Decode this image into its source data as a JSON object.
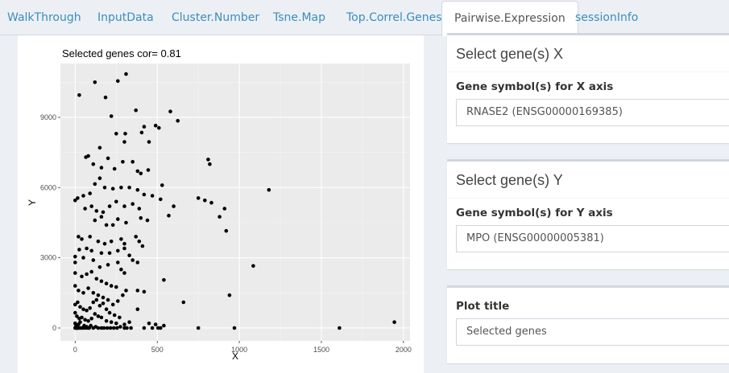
{
  "tabs": [
    {
      "label": "WalkThrough",
      "active": false
    },
    {
      "label": "InputData",
      "active": false
    },
    {
      "label": "Cluster.Number",
      "active": false
    },
    {
      "label": "Tsne.Map",
      "active": false
    },
    {
      "label": "Top.Correl.Genes",
      "active": false
    },
    {
      "label": "Pairwise.Expression",
      "active": true
    },
    {
      "label": "sessionInfo",
      "active": false
    }
  ],
  "colors": {
    "tab_link": "#3c8dbc",
    "panel_bg": "#ecf0f5",
    "plot_bg": "#ebebeb",
    "point": "#000000"
  },
  "gene_x": {
    "title": "Select gene(s) X",
    "label": "Gene symbol(s) for X axis",
    "value": "RNASE2 (ENSG00000169385)"
  },
  "gene_y": {
    "title": "Select gene(s) Y",
    "label": "Gene symbol(s) for Y axis",
    "value": "MPO (ENSG00000005381)"
  },
  "plot_title_input": {
    "label": "Plot title",
    "value": "Selected genes"
  },
  "chart_data": {
    "type": "scatter",
    "title": "Selected genes cor= 0.81",
    "xlabel": "X",
    "ylabel": "Y",
    "xlim": [
      -90,
      2040
    ],
    "ylim": [
      -550,
      11300
    ],
    "x_ticks": [
      0,
      500,
      1000,
      1500,
      2000
    ],
    "y_ticks": [
      0,
      3000,
      6000,
      9000
    ],
    "x_tick_labels": [
      "0",
      "500",
      "1000",
      "1500",
      "2000"
    ],
    "y_tick_labels": [
      "0",
      "3000",
      "6000",
      "9000"
    ],
    "grid": true,
    "points": [
      [
        25,
        9950
      ],
      [
        120,
        10500
      ],
      [
        185,
        9850
      ],
      [
        260,
        10550
      ],
      [
        310,
        10850
      ],
      [
        220,
        9050
      ],
      [
        370,
        9300
      ],
      [
        420,
        8600
      ],
      [
        490,
        8650
      ],
      [
        510,
        8550
      ],
      [
        580,
        9250
      ],
      [
        625,
        8850
      ],
      [
        405,
        8350
      ],
      [
        450,
        7950
      ],
      [
        300,
        7950
      ],
      [
        305,
        8300
      ],
      [
        250,
        8300
      ],
      [
        150,
        7700
      ],
      [
        65,
        7300
      ],
      [
        80,
        7350
      ],
      [
        110,
        7000
      ],
      [
        160,
        6850
      ],
      [
        200,
        7250
      ],
      [
        240,
        6800
      ],
      [
        290,
        7100
      ],
      [
        350,
        7100
      ],
      [
        380,
        6700
      ],
      [
        400,
        6600
      ],
      [
        445,
        6750
      ],
      [
        530,
        6100
      ],
      [
        150,
        6400
      ],
      [
        120,
        6150
      ],
      [
        180,
        6000
      ],
      [
        230,
        5950
      ],
      [
        280,
        6000
      ],
      [
        330,
        6000
      ],
      [
        380,
        5900
      ],
      [
        420,
        5700
      ],
      [
        470,
        5650
      ],
      [
        520,
        5500
      ],
      [
        750,
        5550
      ],
      [
        790,
        5450
      ],
      [
        830,
        5350
      ],
      [
        810,
        7200
      ],
      [
        820,
        7000
      ],
      [
        1180,
        5900
      ],
      [
        910,
        5100
      ],
      [
        880,
        4750
      ],
      [
        570,
        4800
      ],
      [
        600,
        5200
      ],
      [
        0,
        5450
      ],
      [
        15,
        5550
      ],
      [
        50,
        5650
      ],
      [
        90,
        5750
      ],
      [
        100,
        5200
      ],
      [
        60,
        5100
      ],
      [
        130,
        5000
      ],
      [
        170,
        4950
      ],
      [
        210,
        5200
      ],
      [
        250,
        5400
      ],
      [
        300,
        5200
      ],
      [
        350,
        5300
      ],
      [
        390,
        5100
      ],
      [
        400,
        4700
      ],
      [
        440,
        4600
      ],
      [
        160,
        4750
      ],
      [
        120,
        4600
      ],
      [
        190,
        4400
      ],
      [
        230,
        4400
      ],
      [
        260,
        4650
      ],
      [
        310,
        4500
      ],
      [
        20,
        3900
      ],
      [
        40,
        3800
      ],
      [
        90,
        3900
      ],
      [
        140,
        3700
      ],
      [
        180,
        3600
      ],
      [
        220,
        3700
      ],
      [
        280,
        3800
      ],
      [
        300,
        3600
      ],
      [
        370,
        3900
      ],
      [
        390,
        3700
      ],
      [
        410,
        3500
      ],
      [
        920,
        4150
      ],
      [
        25,
        3350
      ],
      [
        70,
        3400
      ],
      [
        100,
        3300
      ],
      [
        160,
        3200
      ],
      [
        210,
        3200
      ],
      [
        260,
        3300
      ],
      [
        300,
        3400
      ],
      [
        330,
        3100
      ],
      [
        350,
        2900
      ],
      [
        380,
        2800
      ],
      [
        0,
        3050
      ],
      [
        0,
        2800
      ],
      [
        50,
        3000
      ],
      [
        110,
        2900
      ],
      [
        150,
        2600
      ],
      [
        200,
        2700
      ],
      [
        260,
        2800
      ],
      [
        280,
        2500
      ],
      [
        300,
        2350
      ],
      [
        0,
        2350
      ],
      [
        40,
        2200
      ],
      [
        70,
        2300
      ],
      [
        100,
        2400
      ],
      [
        130,
        2100
      ],
      [
        160,
        2000
      ],
      [
        190,
        1900
      ],
      [
        220,
        1800
      ],
      [
        250,
        1750
      ],
      [
        540,
        2050
      ],
      [
        1085,
        2650
      ],
      [
        940,
        1400
      ],
      [
        0,
        1800
      ],
      [
        20,
        1600
      ],
      [
        50,
        1500
      ],
      [
        80,
        1700
      ],
      [
        110,
        1500
      ],
      [
        140,
        1400
      ],
      [
        170,
        1300
      ],
      [
        200,
        1200
      ],
      [
        230,
        1000
      ],
      [
        260,
        1150
      ],
      [
        290,
        1400
      ],
      [
        310,
        1600
      ],
      [
        380,
        1600
      ],
      [
        420,
        1550
      ],
      [
        660,
        1100
      ],
      [
        0,
        1000
      ],
      [
        15,
        1100
      ],
      [
        30,
        900
      ],
      [
        50,
        800
      ],
      [
        70,
        750
      ],
      [
        90,
        850
      ],
      [
        110,
        1100
      ],
      [
        130,
        1200
      ],
      [
        150,
        950
      ],
      [
        170,
        1050
      ],
      [
        190,
        800
      ],
      [
        210,
        650
      ],
      [
        240,
        550
      ],
      [
        270,
        450
      ],
      [
        380,
        800
      ],
      [
        0,
        650
      ],
      [
        10,
        500
      ],
      [
        25,
        400
      ],
      [
        40,
        450
      ],
      [
        60,
        350
      ],
      [
        80,
        300
      ],
      [
        100,
        400
      ],
      [
        120,
        600
      ],
      [
        140,
        500
      ],
      [
        160,
        450
      ],
      [
        190,
        300
      ],
      [
        220,
        250
      ],
      [
        250,
        200
      ],
      [
        300,
        150
      ],
      [
        330,
        250
      ],
      [
        450,
        200
      ],
      [
        490,
        150
      ],
      [
        0,
        200
      ],
      [
        5,
        100
      ],
      [
        10,
        50
      ],
      [
        15,
        0
      ],
      [
        20,
        150
      ],
      [
        30,
        250
      ],
      [
        45,
        0
      ],
      [
        55,
        100
      ],
      [
        70,
        50
      ],
      [
        85,
        0
      ],
      [
        95,
        100
      ],
      [
        110,
        0
      ],
      [
        125,
        50
      ],
      [
        140,
        0
      ],
      [
        160,
        0
      ],
      [
        175,
        0
      ],
      [
        195,
        0
      ],
      [
        215,
        0
      ],
      [
        235,
        0
      ],
      [
        255,
        0
      ],
      [
        275,
        50
      ],
      [
        300,
        0
      ],
      [
        315,
        0
      ],
      [
        340,
        0
      ],
      [
        420,
        0
      ],
      [
        470,
        0
      ],
      [
        505,
        0
      ],
      [
        520,
        0
      ],
      [
        540,
        100
      ],
      [
        750,
        0
      ],
      [
        970,
        0
      ],
      [
        1610,
        0
      ],
      [
        1945,
        250
      ],
      [
        0,
        0
      ],
      [
        2,
        0
      ],
      [
        4,
        0
      ],
      [
        8,
        0
      ],
      [
        12,
        0
      ],
      [
        18,
        0
      ],
      [
        28,
        0
      ],
      [
        38,
        0
      ],
      [
        60,
        0
      ],
      [
        75,
        0
      ]
    ]
  }
}
